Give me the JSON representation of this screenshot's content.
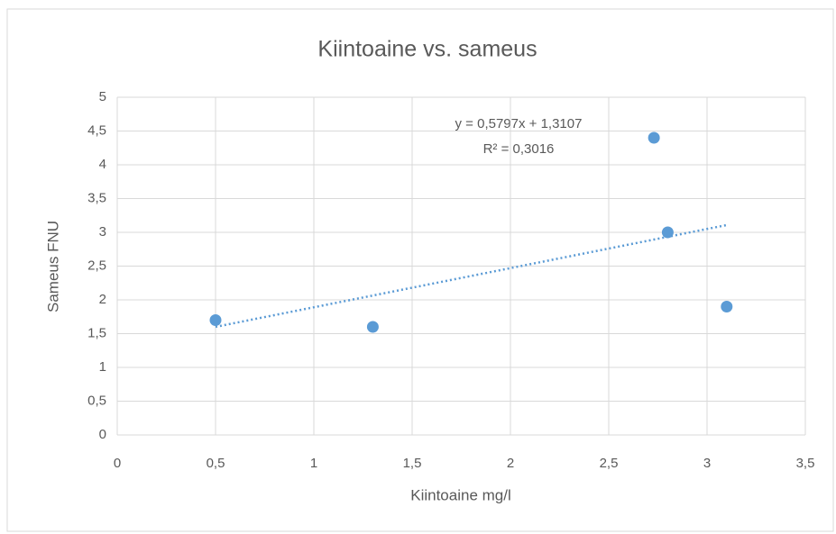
{
  "chart_data": {
    "type": "scatter",
    "title": "Kiintoaine vs. sameus",
    "x_label": "Kiintoaine mg/l",
    "y_label": "Sameus FNU",
    "series": [
      {
        "x": [
          0.5,
          1.3,
          2.73,
          2.8,
          3.1
        ],
        "values": [
          1.7,
          1.6,
          4.4,
          3.0,
          1.9
        ],
        "color": "#5b9bd5"
      }
    ],
    "trendline": {
      "slope": 0.5797,
      "intercept": 1.3107,
      "x_range": [
        0.5,
        3.1
      ],
      "color": "#5b9bd5",
      "equation": "y = 0,5797x + 1,3107",
      "r_squared": 0.3016,
      "r_squared_label": "R² = 0,3016"
    },
    "xlim": [
      0,
      3.5
    ],
    "xticks": [
      0,
      {
        "value": 0.5,
        "label": "0,5"
      },
      1,
      {
        "value": 1.5,
        "label": "1,5"
      },
      2,
      {
        "value": 2.5,
        "label": "2,5"
      },
      3,
      {
        "value": 3.5,
        "label": "3,5"
      }
    ],
    "ylim": [
      0,
      5
    ],
    "yticks": [
      0,
      {
        "value": 0.5,
        "label": "0,5"
      },
      1,
      {
        "value": 1.5,
        "label": "1,5"
      },
      2,
      {
        "value": 2.5,
        "label": "2,5"
      },
      3,
      {
        "value": 3.5,
        "label": "3,5"
      },
      4,
      {
        "value": 4.5,
        "label": "4,5"
      },
      5
    ],
    "grid": true
  }
}
